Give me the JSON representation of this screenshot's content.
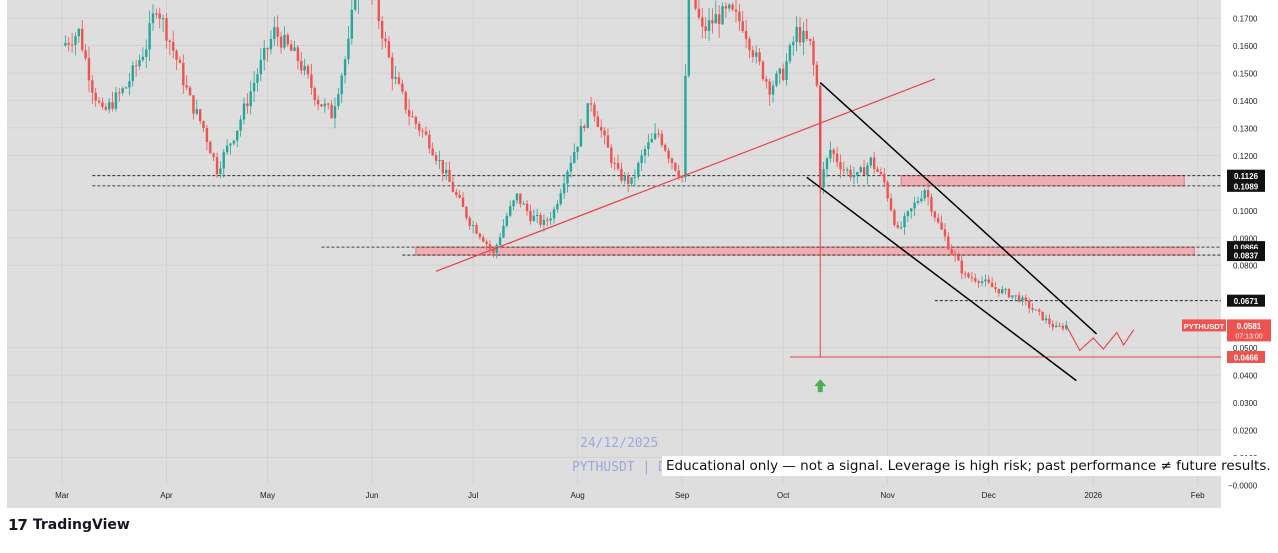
{
  "chart_data": {
    "type": "candlestick",
    "symbol": "PYTHUSDT",
    "ylim": [
      0,
      0.18
    ],
    "y_ticks": [
      0.17,
      0.16,
      0.15,
      0.14,
      0.13,
      0.12,
      0.1,
      0.09,
      0.08,
      0.05,
      0.04,
      0.03,
      0.02,
      0.01
    ],
    "y_tick_labels": [
      "0.1700",
      "0.1600",
      "0.1500",
      "0.1400",
      "0.1300",
      "0.1200",
      "0.1000",
      "0.0900",
      "0.0800",
      "0.0500",
      "0.0400",
      "0.0300",
      "0.0200",
      "0.0100"
    ],
    "zero_label": "−0.0000",
    "x_ticks": [
      "Mar",
      "Apr",
      "May",
      "Jun",
      "Jul",
      "Aug",
      "Sep",
      "Oct",
      "Nov",
      "Dec",
      "2026",
      "Feb"
    ],
    "x_tick_dates": [
      "2025-03-01",
      "2025-04-01",
      "2025-05-01",
      "2025-06-01",
      "2025-07-01",
      "2025-08-01",
      "2025-09-01",
      "2025-10-01",
      "2025-11-01",
      "2025-12-01",
      "2026-01-01",
      "2026-02-01"
    ],
    "price_series": [
      [
        "2025-03-01",
        0.16
      ],
      [
        "2025-03-06",
        0.165
      ],
      [
        "2025-03-10",
        0.145
      ],
      [
        "2025-03-13",
        0.135
      ],
      [
        "2025-03-20",
        0.145
      ],
      [
        "2025-03-26",
        0.16
      ],
      [
        "2025-03-29",
        0.175
      ],
      [
        "2025-04-04",
        0.155
      ],
      [
        "2025-04-08",
        0.14
      ],
      [
        "2025-04-12",
        0.13
      ],
      [
        "2025-04-16",
        0.115
      ],
      [
        "2025-04-22",
        0.13
      ],
      [
        "2025-04-28",
        0.15
      ],
      [
        "2025-05-03",
        0.165
      ],
      [
        "2025-05-10",
        0.155
      ],
      [
        "2025-05-16",
        0.14
      ],
      [
        "2025-05-20",
        0.135
      ],
      [
        "2025-05-25",
        0.16
      ],
      [
        "2025-05-28",
        0.19
      ],
      [
        "2025-06-02",
        0.175
      ],
      [
        "2025-06-07",
        0.15
      ],
      [
        "2025-06-12",
        0.135
      ],
      [
        "2025-06-18",
        0.125
      ],
      [
        "2025-06-22",
        0.115
      ],
      [
        "2025-06-26",
        0.105
      ],
      [
        "2025-06-30",
        0.096
      ],
      [
        "2025-07-04",
        0.09
      ],
      [
        "2025-07-07",
        0.084
      ],
      [
        "2025-07-11",
        0.098
      ],
      [
        "2025-07-14",
        0.105
      ],
      [
        "2025-07-18",
        0.098
      ],
      [
        "2025-07-22",
        0.095
      ],
      [
        "2025-07-25",
        0.1
      ],
      [
        "2025-07-28",
        0.112
      ],
      [
        "2025-08-01",
        0.125
      ],
      [
        "2025-08-05",
        0.14
      ],
      [
        "2025-08-09",
        0.125
      ],
      [
        "2025-08-13",
        0.113
      ],
      [
        "2025-08-17",
        0.11
      ],
      [
        "2025-08-21",
        0.122
      ],
      [
        "2025-08-25",
        0.128
      ],
      [
        "2025-08-29",
        0.118
      ],
      [
        "2025-09-01",
        0.112
      ],
      [
        "2025-09-03",
        0.182
      ],
      [
        "2025-09-07",
        0.165
      ],
      [
        "2025-09-11",
        0.17
      ],
      [
        "2025-09-15",
        0.172
      ],
      [
        "2025-09-19",
        0.168
      ],
      [
        "2025-09-23",
        0.155
      ],
      [
        "2025-09-27",
        0.145
      ],
      [
        "2025-10-01",
        0.15
      ],
      [
        "2025-10-05",
        0.165
      ],
      [
        "2025-10-09",
        0.16
      ],
      [
        "2025-10-11",
        0.145
      ],
      [
        "2025-10-12",
        0.11
      ],
      [
        "2025-10-15",
        0.122
      ],
      [
        "2025-10-19",
        0.115
      ],
      [
        "2025-10-23",
        0.112
      ],
      [
        "2025-10-27",
        0.118
      ],
      [
        "2025-10-31",
        0.11
      ],
      [
        "2025-11-04",
        0.092
      ],
      [
        "2025-11-08",
        0.1
      ],
      [
        "2025-11-12",
        0.108
      ],
      [
        "2025-11-16",
        0.095
      ],
      [
        "2025-11-20",
        0.085
      ],
      [
        "2025-11-24",
        0.076
      ],
      [
        "2025-11-28",
        0.075
      ],
      [
        "2025-12-02",
        0.072
      ],
      [
        "2025-12-06",
        0.07
      ],
      [
        "2025-12-10",
        0.068
      ],
      [
        "2025-12-14",
        0.064
      ],
      [
        "2025-12-18",
        0.06
      ],
      [
        "2025-12-21",
        0.057
      ],
      [
        "2025-12-24",
        0.0581
      ]
    ],
    "horizontal_levels": [
      {
        "label": "0.1126",
        "value": 0.1126
      },
      {
        "label": "0.1089",
        "value": 0.1089
      },
      {
        "label": "0.0866",
        "value": 0.0866
      },
      {
        "label": "0.0837",
        "value": 0.0837
      },
      {
        "label": "0.0671",
        "value": 0.0671
      },
      {
        "label": "0.0466",
        "value": 0.0466
      }
    ],
    "current_price": {
      "symbol": "PYTHUSDT",
      "value": "0.0581",
      "countdown": "07:13:00",
      "price": 0.0581
    }
  },
  "watermark": {
    "date": "24/12/2025",
    "symbol_line": "PYTHUSDT | D"
  },
  "disclaimer": "Educational only — not a signal. Leverage is high risk; past performance ≠ future results.",
  "branding": {
    "logo_mark": "17",
    "logo_word": "TradingView"
  },
  "colors": {
    "up": "#26a69a",
    "down": "#ef5350",
    "background": "#dedede",
    "zone": "#f0a3a8",
    "trendline_red": "#e8414b",
    "channel": "#000000",
    "arrow": "#4caf50"
  }
}
